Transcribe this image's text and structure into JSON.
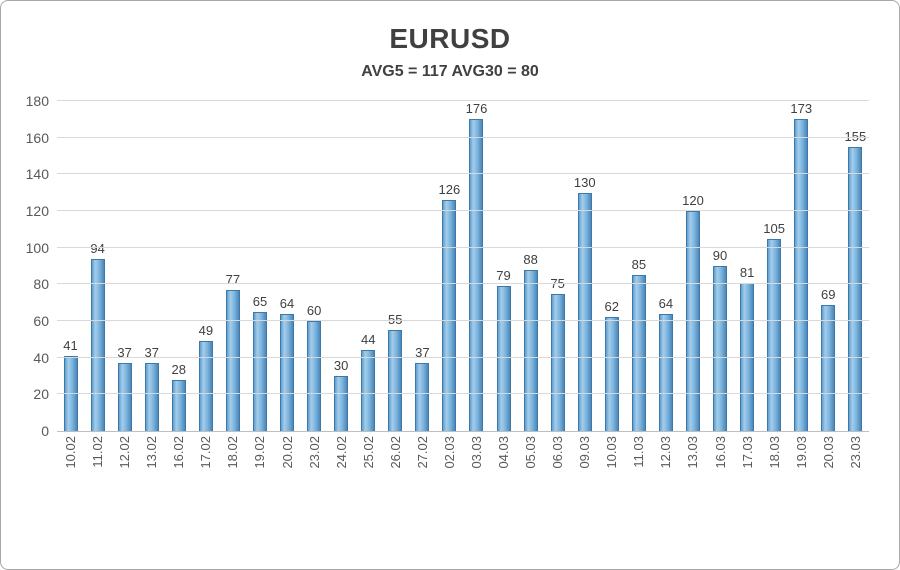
{
  "chart_data": {
    "type": "bar",
    "title": "EURUSD",
    "subtitle": "AVG5 = 117 AVG30 = 80",
    "categories": [
      "10.02",
      "11.02",
      "12.02",
      "13.02",
      "16.02",
      "17.02",
      "18.02",
      "19.02",
      "20.02",
      "23.02",
      "24.02",
      "25.02",
      "26.02",
      "27.02",
      "02.03",
      "03.03",
      "04.03",
      "05.03",
      "06.03",
      "09.03",
      "10.03",
      "11.03",
      "12.03",
      "13.03",
      "16.03",
      "17.03",
      "18.03",
      "19.03",
      "20.03",
      "23.03"
    ],
    "values": [
      41,
      94,
      37,
      37,
      28,
      49,
      77,
      65,
      64,
      60,
      30,
      44,
      55,
      37,
      126,
      176,
      79,
      88,
      75,
      130,
      62,
      85,
      64,
      120,
      90,
      81,
      105,
      173,
      69,
      155
    ],
    "xlabel": "",
    "ylabel": "",
    "ylim": [
      0,
      180
    ],
    "ytick_step": 20,
    "grid": true,
    "legend": "none",
    "colors": {
      "bar_fill": "#7db6e0",
      "bar_border": "#3c78a8",
      "gridline": "#d9d9d9",
      "axis_text": "#595959",
      "title_text": "#404040"
    }
  }
}
